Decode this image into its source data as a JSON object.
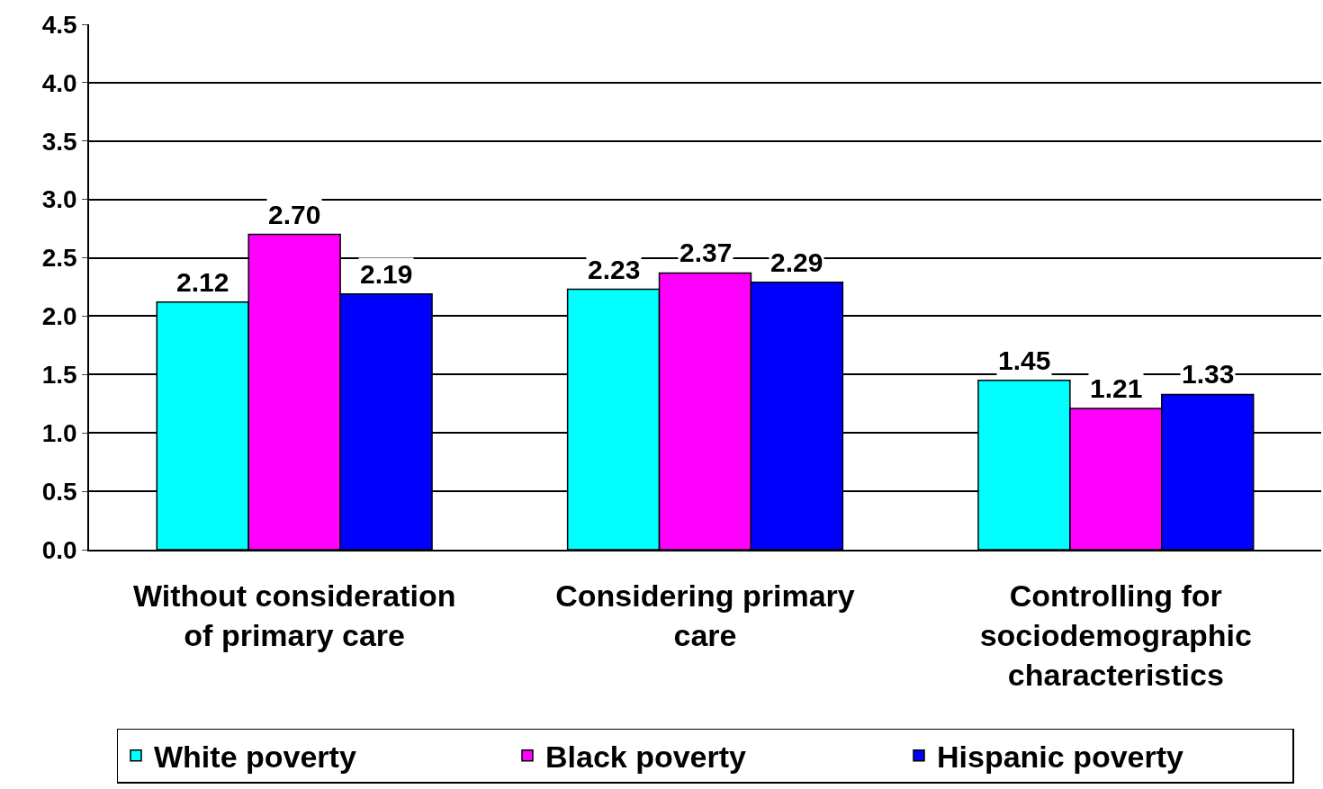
{
  "chart_data": {
    "type": "bar",
    "categories": [
      "Without consideration of primary care",
      "Considering primary care",
      "Controlling for sociodemographic characteristics"
    ],
    "series": [
      {
        "name": "White poverty",
        "color": "#00ffff",
        "values": [
          2.12,
          2.23,
          1.45
        ],
        "value_labels": [
          "2.12",
          "2.23",
          "1.45"
        ]
      },
      {
        "name": "Black poverty",
        "color": "#ff00ff",
        "values": [
          2.7,
          2.37,
          1.21
        ],
        "value_labels": [
          "2.70",
          "2.37",
          "1.21"
        ]
      },
      {
        "name": "Hispanic poverty",
        "color": "#0000ff",
        "values": [
          2.19,
          2.29,
          1.33
        ],
        "value_labels": [
          "2.19",
          "2.29",
          "1.33"
        ]
      }
    ],
    "ylim": [
      0,
      4.5
    ],
    "yticks": [
      {
        "value": 0,
        "label": "0.0"
      },
      {
        "value": 0.5,
        "label": "0.5"
      },
      {
        "value": 1,
        "label": "1.0"
      },
      {
        "value": 1.5,
        "label": "1.5"
      },
      {
        "value": 2,
        "label": "2.0"
      },
      {
        "value": 2.5,
        "label": "2.5"
      },
      {
        "value": 3,
        "label": "3.0"
      },
      {
        "value": 3.5,
        "label": "3.5"
      },
      {
        "value": 4,
        "label": "4.0"
      },
      {
        "value": 4.5,
        "label": "4.5"
      }
    ],
    "grid": "y",
    "legend": "bottom"
  }
}
